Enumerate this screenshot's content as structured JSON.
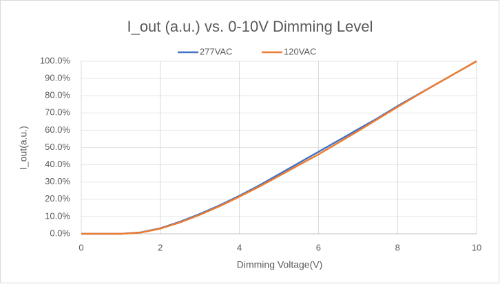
{
  "chart_data": {
    "type": "line",
    "title": "I_out (a.u.) vs. 0-10V Dimming Level",
    "x_label": "Dimming Voltage(V)",
    "y_label": "I_out(a.u.)",
    "x": [
      0,
      0.5,
      1,
      1.5,
      2,
      2.5,
      3,
      3.5,
      4,
      4.5,
      5,
      5.5,
      6,
      6.5,
      7,
      7.5,
      8,
      8.5,
      9,
      9.5,
      10
    ],
    "series": [
      {
        "name": "277VAC",
        "color": "#4472c4",
        "values": [
          0,
          0,
          0,
          0.8,
          3.2,
          7,
          11.5,
          16.5,
          22,
          28,
          34.5,
          41,
          47.5,
          54,
          60.5,
          67,
          74,
          80.5,
          87,
          93.5,
          100
        ]
      },
      {
        "name": "120VAC",
        "color": "#ed7d31",
        "values": [
          0,
          0,
          0,
          0.7,
          3,
          6.6,
          11,
          16,
          21.5,
          27.3,
          33.5,
          39.8,
          46,
          52.7,
          59.5,
          66.5,
          73.5,
          80.3,
          87,
          93.5,
          100
        ]
      }
    ],
    "xlim": [
      0,
      10
    ],
    "xticks": [
      0,
      2,
      4,
      6,
      8,
      10
    ],
    "ylim": [
      0,
      100
    ],
    "yticks": [
      {
        "value": 0,
        "label": "0.0%"
      },
      {
        "value": 10,
        "label": "10.0%"
      },
      {
        "value": 20,
        "label": "20.0%"
      },
      {
        "value": 30,
        "label": "30.0%"
      },
      {
        "value": 40,
        "label": "40.0%"
      },
      {
        "value": 50,
        "label": "50.0%"
      },
      {
        "value": 60,
        "label": "60.0%"
      },
      {
        "value": 70,
        "label": "70.0%"
      },
      {
        "value": 80,
        "label": "80.0%"
      },
      {
        "value": 90,
        "label": "90.0%"
      },
      {
        "value": 100,
        "label": "100.0%"
      }
    ],
    "grid": true,
    "legend": "top"
  }
}
